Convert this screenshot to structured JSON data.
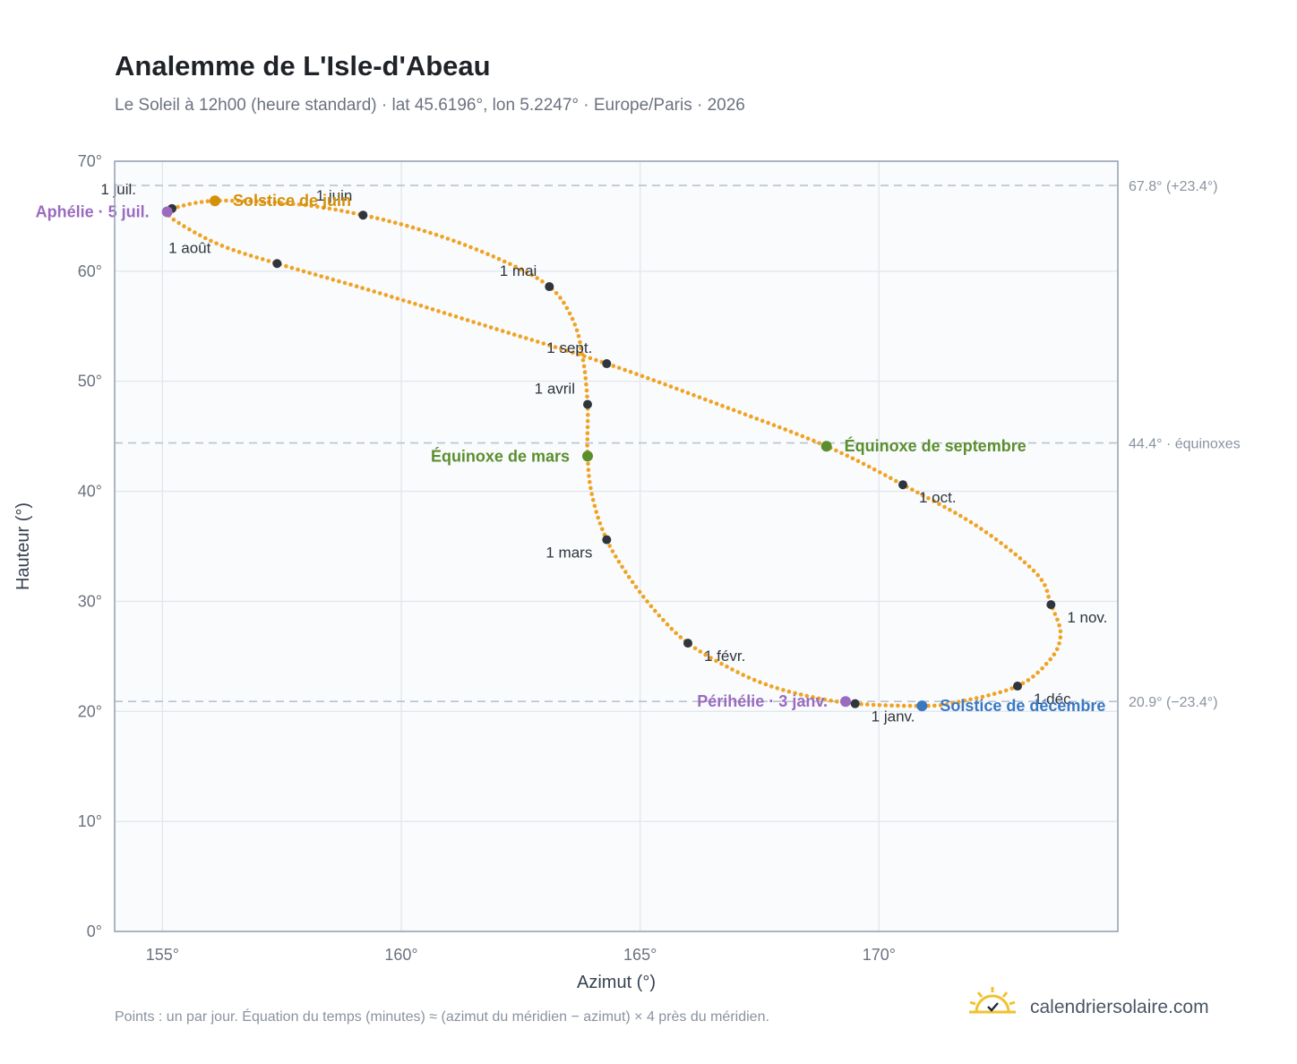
{
  "title": "Analemme de L'Isle-d'Abeau",
  "subtitle": "Le Soleil à 12h00 (heure standard) · lat 45.6196°, lon 5.2247° · Europe/Paris · 2026",
  "footnote": "Points : un par jour. Équation du temps (minutes) ≈ (azimut du méridien − azimut) × 4 près du méridien.",
  "brand": {
    "name": "calendriersolaire.com",
    "icon": "sun-check-logo-icon"
  },
  "colors": {
    "curve": "#f0a323",
    "month_marker": "#2f353d",
    "solstice_june": "#d4900a",
    "solstice_december": "#3a78c2",
    "equinox": "#5b8f2e",
    "apsis": "#9b6bbf",
    "reference_line": "#b8c4d0",
    "plot_bg": "#f9fbfd",
    "plot_border": "#9aa5b4",
    "grid": "#e3e8ee"
  },
  "chart_data": {
    "type": "scatter",
    "xlabel": "Azimut (°)",
    "ylabel": "Hauteur (°)",
    "xlim": [
      154,
      175
    ],
    "ylim": [
      0,
      70
    ],
    "x_ticks": [
      155,
      160,
      165,
      170
    ],
    "x_tick_labels": [
      "155°",
      "160°",
      "165°",
      "170°"
    ],
    "y_ticks": [
      0,
      10,
      20,
      30,
      40,
      50,
      60,
      70
    ],
    "y_tick_labels": [
      "0°",
      "10°",
      "20°",
      "30°",
      "40°",
      "50°",
      "60°",
      "70°"
    ],
    "grid": true,
    "points_per_day": 1,
    "reference_lines": [
      {
        "y": 67.8,
        "label": "67.8° (+23.4°)"
      },
      {
        "y": 44.4,
        "label": "44.4° · équinoxes"
      },
      {
        "y": 20.9,
        "label": "20.9° (−23.4°)"
      }
    ],
    "month_markers": [
      {
        "label": "1 janv.",
        "x": 169.5,
        "y": 20.7
      },
      {
        "label": "1 févr.",
        "x": 166.0,
        "y": 26.2
      },
      {
        "label": "1 mars",
        "x": 164.3,
        "y": 35.6
      },
      {
        "label": "1 avril",
        "x": 163.9,
        "y": 47.9
      },
      {
        "label": "1 mai",
        "x": 163.1,
        "y": 58.6
      },
      {
        "label": "1 juin",
        "x": 159.2,
        "y": 65.1
      },
      {
        "label": "1 juil.",
        "x": 155.2,
        "y": 65.7
      },
      {
        "label": "1 août",
        "x": 157.4,
        "y": 60.7
      },
      {
        "label": "1 sept.",
        "x": 164.3,
        "y": 51.6
      },
      {
        "label": "1 oct.",
        "x": 170.5,
        "y": 40.6
      },
      {
        "label": "1 nov.",
        "x": 173.6,
        "y": 29.7
      },
      {
        "label": "1 déc.",
        "x": 172.9,
        "y": 22.3
      }
    ],
    "events": [
      {
        "label": "Solstice de juin",
        "x": 156.1,
        "y": 66.4,
        "kind": "solstice_june"
      },
      {
        "label": "Solstice de décembre",
        "x": 170.9,
        "y": 20.5,
        "kind": "solstice_december"
      },
      {
        "label": "Équinoxe de mars",
        "x": 163.9,
        "y": 43.2,
        "kind": "equinox"
      },
      {
        "label": "Équinoxe de septembre",
        "x": 168.9,
        "y": 44.1,
        "kind": "equinox"
      },
      {
        "label": "Périhélie · 3 janv.",
        "x": 169.3,
        "y": 20.9,
        "kind": "apsis"
      },
      {
        "label": "Aphélie · 5 juil.",
        "x": 155.1,
        "y": 65.4,
        "kind": "apsis"
      }
    ],
    "curve_points": [
      {
        "x": 169.5,
        "y": 20.7
      },
      {
        "x": 168.5,
        "y": 21.4
      },
      {
        "x": 167.6,
        "y": 22.5
      },
      {
        "x": 166.8,
        "y": 24.1
      },
      {
        "x": 166.0,
        "y": 26.2
      },
      {
        "x": 165.4,
        "y": 28.7
      },
      {
        "x": 164.8,
        "y": 32.0
      },
      {
        "x": 164.3,
        "y": 35.6
      },
      {
        "x": 164.0,
        "y": 39.5
      },
      {
        "x": 163.9,
        "y": 43.2
      },
      {
        "x": 163.9,
        "y": 47.9
      },
      {
        "x": 163.8,
        "y": 52.1
      },
      {
        "x": 163.6,
        "y": 55.5
      },
      {
        "x": 163.1,
        "y": 58.6
      },
      {
        "x": 162.0,
        "y": 61.2
      },
      {
        "x": 160.6,
        "y": 63.5
      },
      {
        "x": 159.2,
        "y": 65.1
      },
      {
        "x": 157.8,
        "y": 66.1
      },
      {
        "x": 156.1,
        "y": 66.4
      },
      {
        "x": 155.2,
        "y": 65.7
      },
      {
        "x": 155.1,
        "y": 65.4
      },
      {
        "x": 155.3,
        "y": 64.5
      },
      {
        "x": 156.2,
        "y": 62.4
      },
      {
        "x": 157.4,
        "y": 60.7
      },
      {
        "x": 159.4,
        "y": 58.2
      },
      {
        "x": 161.8,
        "y": 55.0
      },
      {
        "x": 164.3,
        "y": 51.6
      },
      {
        "x": 166.7,
        "y": 47.8
      },
      {
        "x": 168.9,
        "y": 44.1
      },
      {
        "x": 170.5,
        "y": 40.6
      },
      {
        "x": 172.1,
        "y": 36.7
      },
      {
        "x": 173.3,
        "y": 32.5
      },
      {
        "x": 173.6,
        "y": 29.7
      },
      {
        "x": 173.8,
        "y": 27.1
      },
      {
        "x": 173.6,
        "y": 24.8
      },
      {
        "x": 172.9,
        "y": 22.3
      },
      {
        "x": 171.6,
        "y": 20.8
      },
      {
        "x": 170.9,
        "y": 20.5
      },
      {
        "x": 169.5,
        "y": 20.7
      }
    ]
  }
}
